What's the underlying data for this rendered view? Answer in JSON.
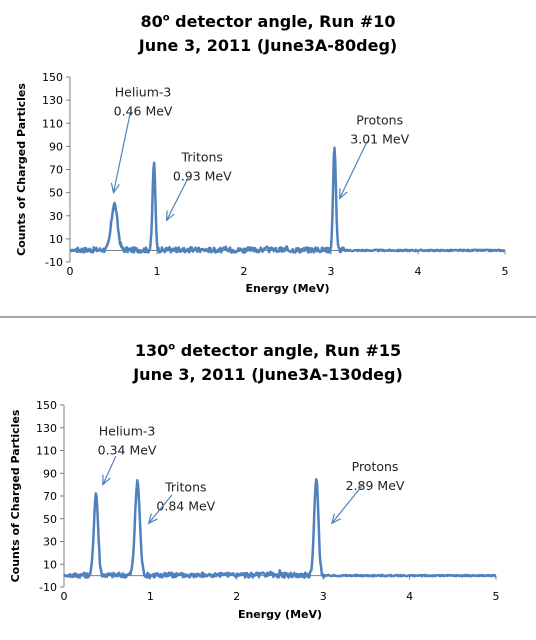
{
  "chart_data": [
    {
      "type": "line",
      "title_line1": {
        "pre": "80",
        "sup": "o",
        "post": " detector angle, Run #10"
      },
      "title_line2": "June 3, 2011 (June3A-80deg)",
      "xlabel": "Energy (MeV)",
      "ylabel": "Counts of Charged Particles",
      "xlim": [
        0,
        5
      ],
      "ylim": [
        -10,
        150
      ],
      "xticks": [
        0,
        1,
        2,
        3,
        4,
        5
      ],
      "yticks": [
        -10,
        10,
        30,
        50,
        70,
        90,
        110,
        130,
        150
      ],
      "grid": false,
      "color": "#4f81bd",
      "peaks": [
        {
          "center": 0.51,
          "height": 40,
          "width": 0.035
        },
        {
          "center": 0.965,
          "height": 75,
          "width": 0.016
        },
        {
          "center": 3.04,
          "height": 90,
          "width": 0.016
        }
      ],
      "noise_end": 3.15,
      "annotations": [
        {
          "lines": [
            "Helium-3",
            "0.46 MeV"
          ],
          "text_x": 0.84,
          "text_y": 133,
          "tip_x": 0.5,
          "tip_y": 50,
          "tail_x": 0.69,
          "tail_y": 118
        },
        {
          "lines": [
            "Tritons",
            "0.93 MeV"
          ],
          "text_x": 1.52,
          "text_y": 77,
          "tip_x": 1.11,
          "tip_y": 26,
          "tail_x": 1.36,
          "tail_y": 63
        },
        {
          "lines": [
            "Protons",
            "3.01 MeV"
          ],
          "text_x": 3.56,
          "text_y": 109,
          "tip_x": 3.1,
          "tip_y": 45,
          "tail_x": 3.42,
          "tail_y": 95
        }
      ]
    },
    {
      "type": "line",
      "title_line1": {
        "pre": "130",
        "sup": "o",
        "post": " detector angle, Run #15"
      },
      "title_line2": "June 3, 2011 (June3A-130deg)",
      "xlabel": "Energy (MeV)",
      "ylabel": "Counts of Charged Particles",
      "xlim": [
        0,
        5
      ],
      "ylim": [
        -10,
        150
      ],
      "xticks": [
        0,
        1,
        2,
        3,
        4,
        5
      ],
      "yticks": [
        -10,
        10,
        30,
        50,
        70,
        90,
        110,
        130,
        150
      ],
      "grid": false,
      "color": "#4f81bd",
      "peaks": [
        {
          "center": 0.37,
          "height": 72,
          "width": 0.024
        },
        {
          "center": 0.85,
          "height": 82,
          "width": 0.028
        },
        {
          "center": 2.92,
          "height": 84,
          "width": 0.024
        }
      ],
      "noise_end": 3.02,
      "annotations": [
        {
          "lines": [
            "Helium-3",
            "0.34 MeV"
          ],
          "text_x": 0.73,
          "text_y": 123,
          "tip_x": 0.45,
          "tip_y": 80,
          "tail_x": 0.6,
          "tail_y": 105
        },
        {
          "lines": [
            "Tritons",
            "0.84 MeV"
          ],
          "text_x": 1.41,
          "text_y": 74,
          "tip_x": 0.98,
          "tip_y": 46,
          "tail_x": 1.25,
          "tail_y": 71
        },
        {
          "lines": [
            "Protons",
            "2.89 MeV"
          ],
          "text_x": 3.6,
          "text_y": 92,
          "tip_x": 3.1,
          "tip_y": 46,
          "tail_x": 3.45,
          "tail_y": 79
        }
      ]
    }
  ]
}
